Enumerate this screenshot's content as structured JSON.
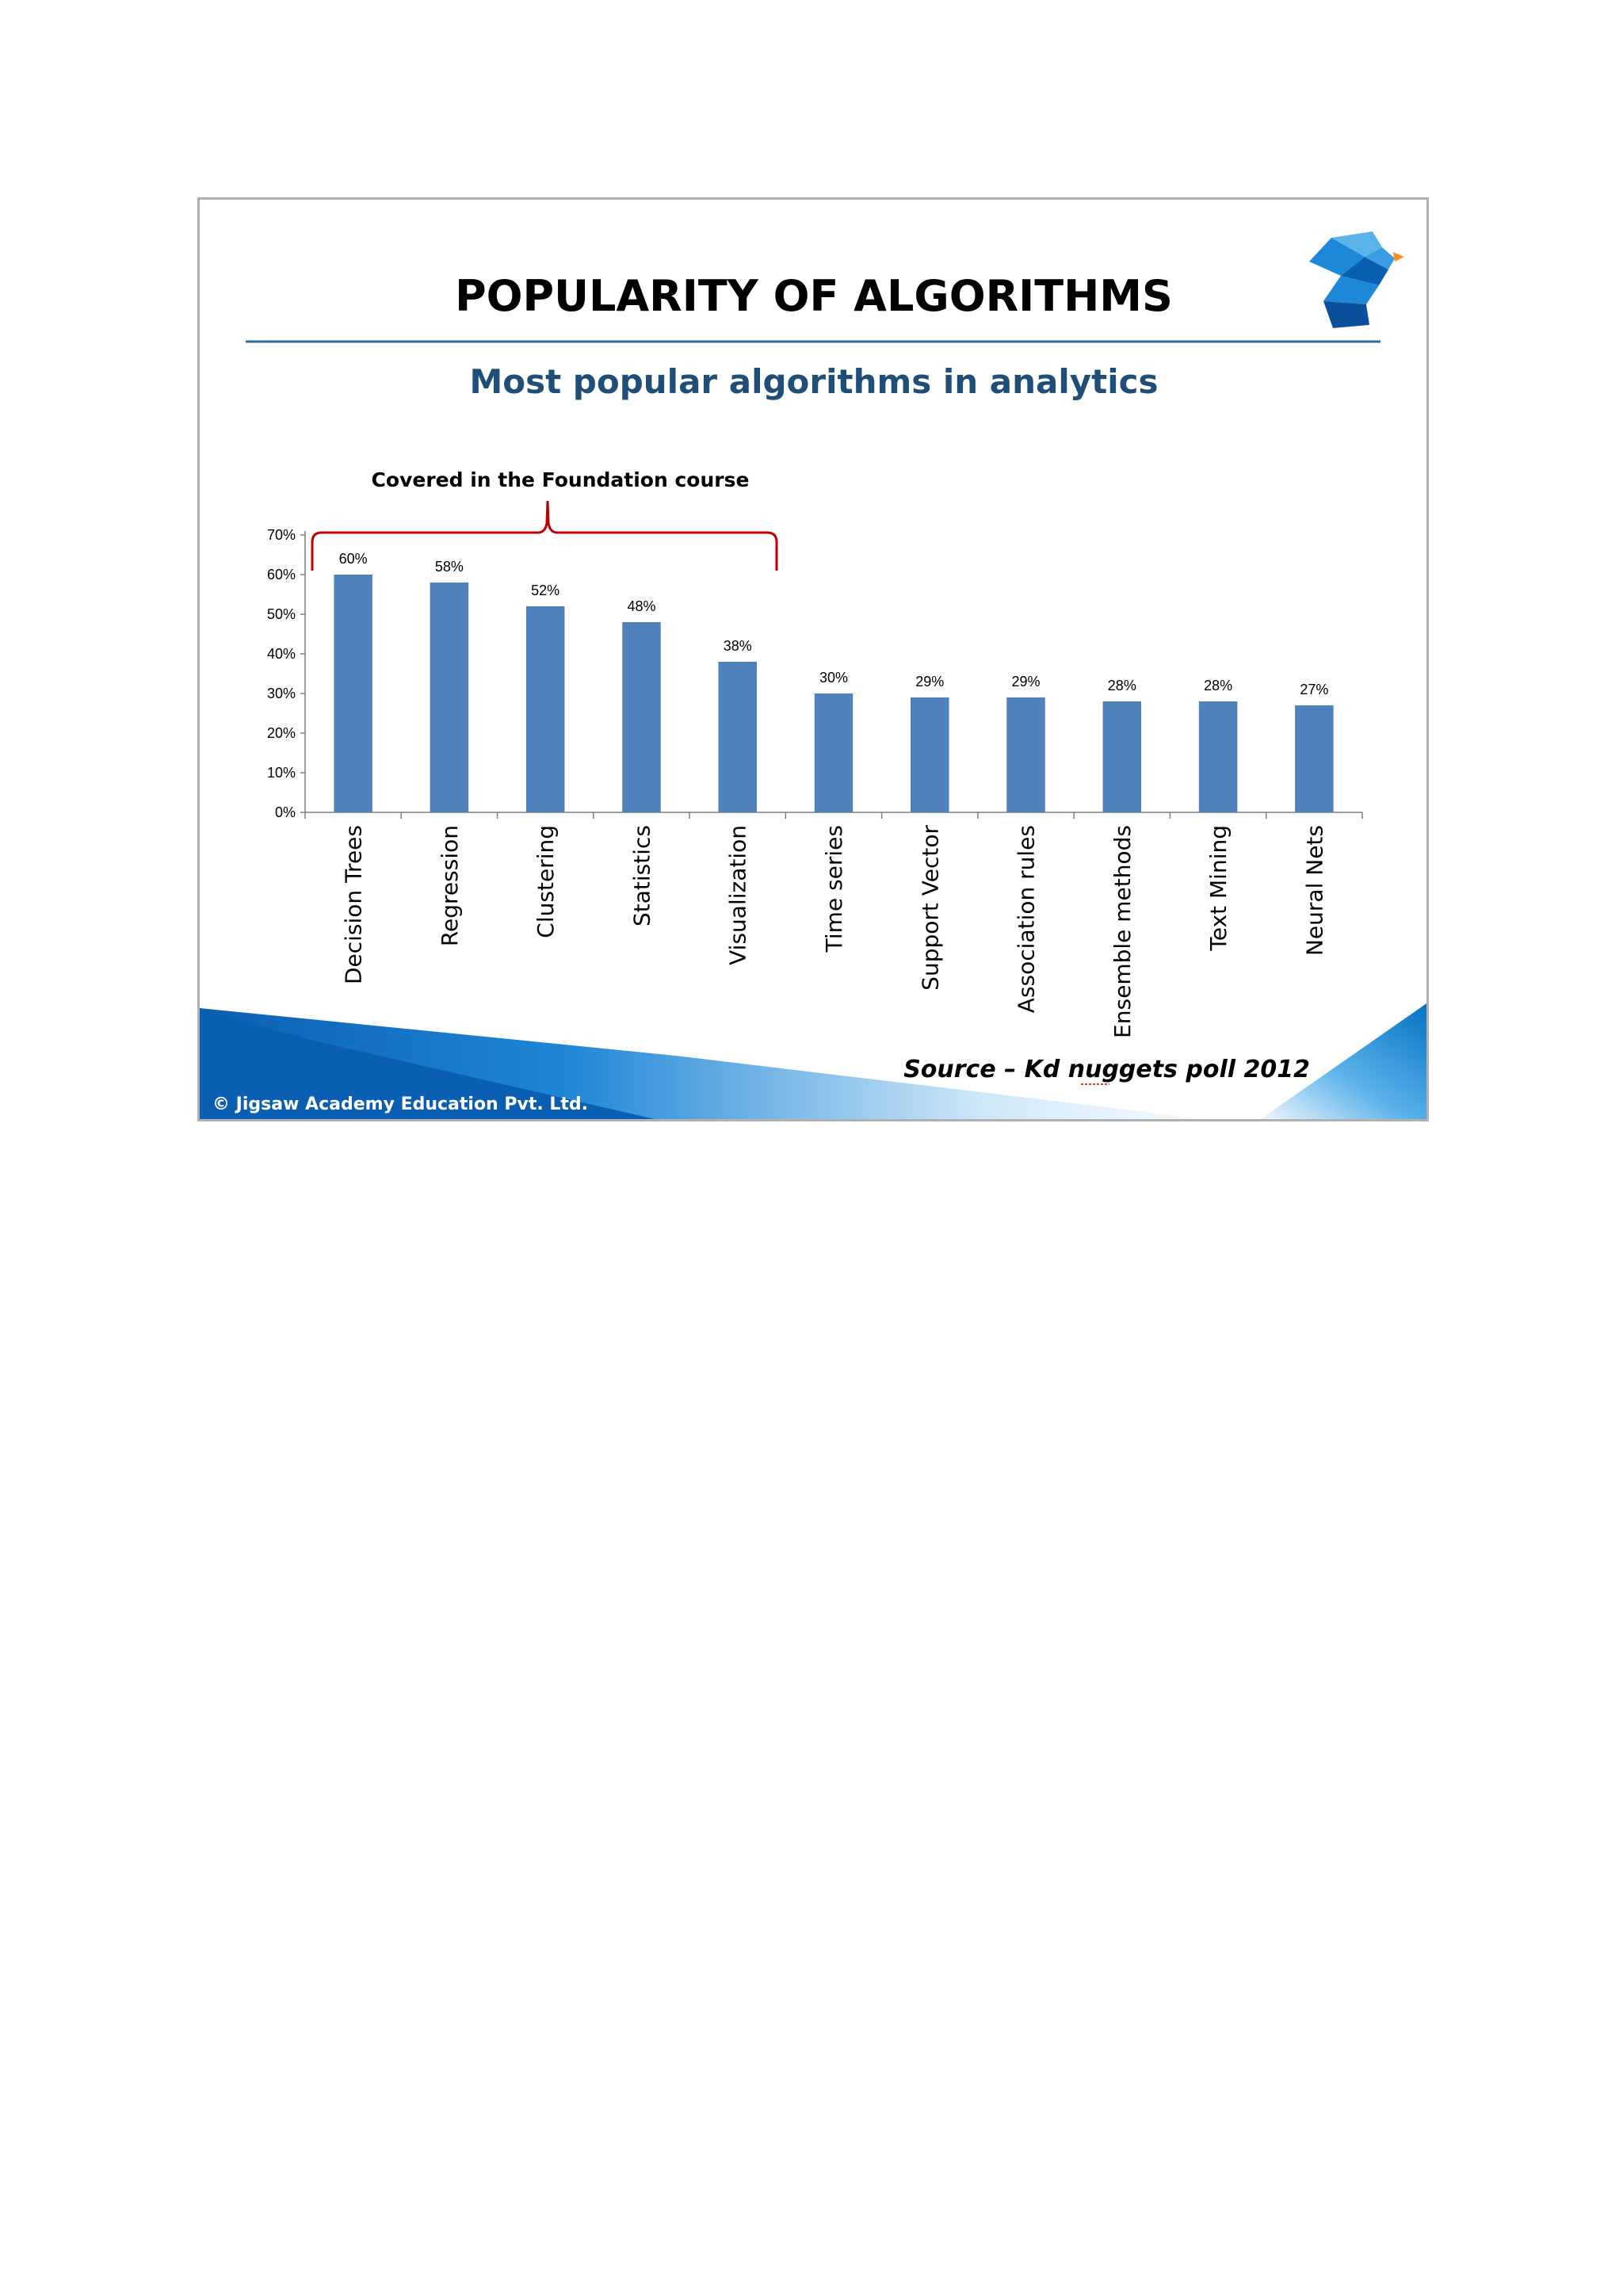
{
  "slide": {
    "title": "POPULARITY OF ALGORITHMS",
    "subtitle": "Most popular algorithms in analytics",
    "bracket_label": "Covered in the Foundation  course",
    "source": "Source – Kd nuggets poll 2012",
    "copyright": "© Jigsaw Academy Education Pvt. Ltd.",
    "logo_icon": "head-profile-icon",
    "colors": {
      "bar": "#4f81bd",
      "bracket": "#c00000",
      "rule": "#2e6da4",
      "subtitle": "#1f4e79",
      "footer_blue": "#0070c0"
    }
  },
  "chart_data": {
    "type": "bar",
    "categories": [
      "Decision Trees",
      "Regression",
      "Clustering",
      "Statistics",
      "Visualization",
      "Time series",
      "Support Vector",
      "Association rules",
      "Ensemble methods",
      "Text Mining",
      "Neural Nets"
    ],
    "values": [
      60,
      58,
      52,
      48,
      38,
      30,
      29,
      29,
      28,
      28,
      27
    ],
    "data_labels": [
      "60%",
      "58%",
      "52%",
      "48%",
      "38%",
      "30%",
      "29%",
      "29%",
      "28%",
      "28%",
      "27%"
    ],
    "ylim": [
      0,
      70
    ],
    "yticks": [
      0,
      10,
      20,
      30,
      40,
      50,
      60,
      70
    ],
    "ytick_labels": [
      "0%",
      "10%",
      "20%",
      "30%",
      "40%",
      "50%",
      "60%",
      "70%"
    ],
    "title": "POPULARITY OF ALGORITHMS",
    "subtitle": "Most popular algorithms in analytics",
    "xlabel": "",
    "ylabel": "",
    "grid": false,
    "legend": "none",
    "bracket_covers": [
      "Decision Trees",
      "Regression",
      "Clustering",
      "Statistics",
      "Visualization"
    ]
  }
}
